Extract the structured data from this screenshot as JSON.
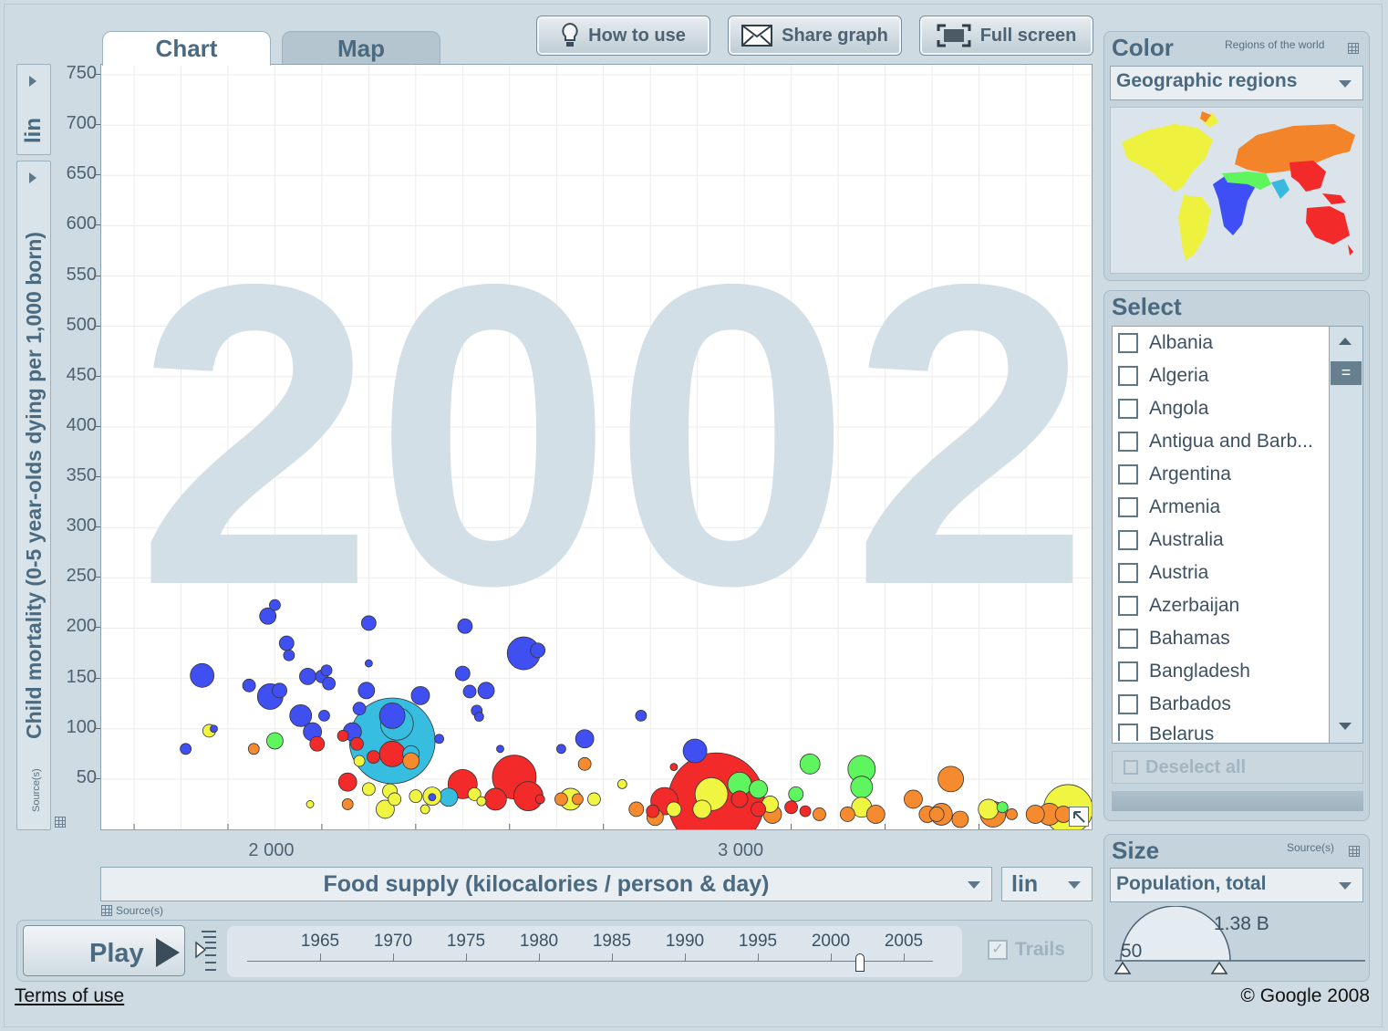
{
  "tabs": [
    {
      "label": "Chart",
      "active": true
    },
    {
      "label": "Map",
      "active": false
    }
  ],
  "toolbar": {
    "how_to_use": "How to use",
    "share_graph": "Share graph",
    "full_screen": "Full screen"
  },
  "y_axis": {
    "scale": "lin",
    "label": "Child mortality (0-5 year-olds dying per 1,000 born)",
    "source": "Source(s)"
  },
  "x_axis": {
    "scale": "lin",
    "label": "Food supply (kilocalories / person & day)",
    "source": "Source(s)"
  },
  "year_watermark": "2002",
  "color_panel": {
    "title": "Color",
    "subtitle": "Regions of the world",
    "selected": "Geographic regions"
  },
  "select_panel": {
    "title": "Select",
    "countries": [
      "Albania",
      "Algeria",
      "Angola",
      "Antigua and Barb...",
      "Argentina",
      "Armenia",
      "Australia",
      "Austria",
      "Azerbaijan",
      "Bahamas",
      "Bangladesh",
      "Barbados",
      "Belarus"
    ],
    "deselect_all": "Deselect all"
  },
  "size_panel": {
    "title": "Size",
    "source": "Source(s)",
    "selected": "Population, total",
    "max_label": "1.38 B",
    "min_label": "50"
  },
  "timeline": {
    "play": "Play",
    "years": [
      "1965",
      "1970",
      "1975",
      "1980",
      "1985",
      "1990",
      "1995",
      "2000",
      "2005"
    ],
    "current_year": 2002,
    "trails": "Trails"
  },
  "footer": {
    "terms": "Terms of use",
    "copyright": "© Google 2008"
  },
  "colors": {
    "sub_saharan_africa": "#3f4ff2",
    "south_asia": "#36bde0",
    "east_asia_pacific": "#f22a2a",
    "america": "#f0f542",
    "europe_central_asia": "#f58a2e",
    "middle_east_north_africa": "#5ef55e"
  },
  "chart_data": {
    "type": "scatter",
    "title": "",
    "xlabel": "Food supply (kilocalories / person & day)",
    "ylabel": "Child mortality (0-5 year-olds dying per 1,000 born)",
    "xlim": [
      1630,
      3740
    ],
    "ylim": [
      0,
      760
    ],
    "x_ticks": [
      2000,
      3000
    ],
    "x_tick_labels": [
      "2 000",
      "3 000"
    ],
    "y_ticks": [
      50,
      100,
      150,
      200,
      250,
      300,
      350,
      400,
      450,
      500,
      550,
      600,
      650,
      700,
      750
    ],
    "size_note": "Bubble area proportional to population",
    "points": [
      {
        "x": 1810,
        "y": 80,
        "r": 6,
        "c": "sub_saharan_africa"
      },
      {
        "x": 1845,
        "y": 153,
        "r": 13,
        "c": "sub_saharan_africa"
      },
      {
        "x": 1945,
        "y": 143,
        "r": 7,
        "c": "sub_saharan_africa"
      },
      {
        "x": 1985,
        "y": 212,
        "r": 9,
        "c": "sub_saharan_africa"
      },
      {
        "x": 2000,
        "y": 223,
        "r": 6,
        "c": "sub_saharan_africa"
      },
      {
        "x": 1990,
        "y": 132,
        "r": 14,
        "c": "sub_saharan_africa"
      },
      {
        "x": 2010,
        "y": 138,
        "r": 8,
        "c": "sub_saharan_africa"
      },
      {
        "x": 2025,
        "y": 185,
        "r": 8,
        "c": "sub_saharan_africa"
      },
      {
        "x": 2030,
        "y": 173,
        "r": 6,
        "c": "sub_saharan_africa"
      },
      {
        "x": 2070,
        "y": 152,
        "r": 9,
        "c": "sub_saharan_africa"
      },
      {
        "x": 2055,
        "y": 113,
        "r": 12,
        "c": "sub_saharan_africa"
      },
      {
        "x": 2080,
        "y": 97,
        "r": 10,
        "c": "sub_saharan_africa"
      },
      {
        "x": 2100,
        "y": 152,
        "r": 7,
        "c": "sub_saharan_africa"
      },
      {
        "x": 2110,
        "y": 158,
        "r": 6,
        "c": "sub_saharan_africa"
      },
      {
        "x": 2115,
        "y": 145,
        "r": 7,
        "c": "sub_saharan_africa"
      },
      {
        "x": 2105,
        "y": 113,
        "r": 6,
        "c": "sub_saharan_africa"
      },
      {
        "x": 1870,
        "y": 100,
        "r": 4,
        "c": "sub_saharan_africa"
      },
      {
        "x": 2180,
        "y": 120,
        "r": 7,
        "c": "sub_saharan_africa"
      },
      {
        "x": 2165,
        "y": 97,
        "r": 10,
        "c": "sub_saharan_africa"
      },
      {
        "x": 2195,
        "y": 138,
        "r": 9,
        "c": "sub_saharan_africa"
      },
      {
        "x": 2200,
        "y": 165,
        "r": 4,
        "c": "sub_saharan_africa"
      },
      {
        "x": 2200,
        "y": 205,
        "r": 8,
        "c": "sub_saharan_africa"
      },
      {
        "x": 2250,
        "y": 113,
        "r": 14,
        "c": "sub_saharan_africa"
      },
      {
        "x": 2310,
        "y": 133,
        "r": 10,
        "c": "sub_saharan_africa"
      },
      {
        "x": 2350,
        "y": 90,
        "r": 5,
        "c": "sub_saharan_africa"
      },
      {
        "x": 2405,
        "y": 202,
        "r": 8,
        "c": "sub_saharan_africa"
      },
      {
        "x": 2400,
        "y": 155,
        "r": 8,
        "c": "sub_saharan_africa"
      },
      {
        "x": 2415,
        "y": 137,
        "r": 7,
        "c": "sub_saharan_africa"
      },
      {
        "x": 2430,
        "y": 118,
        "r": 6,
        "c": "sub_saharan_africa"
      },
      {
        "x": 2435,
        "y": 112,
        "r": 5,
        "c": "sub_saharan_africa"
      },
      {
        "x": 2450,
        "y": 138,
        "r": 9,
        "c": "sub_saharan_africa"
      },
      {
        "x": 2530,
        "y": 175,
        "r": 18,
        "c": "sub_saharan_africa"
      },
      {
        "x": 2560,
        "y": 178,
        "r": 8,
        "c": "sub_saharan_africa"
      },
      {
        "x": 2480,
        "y": 80,
        "r": 4,
        "c": "sub_saharan_africa"
      },
      {
        "x": 2610,
        "y": 80,
        "r": 5,
        "c": "sub_saharan_africa"
      },
      {
        "x": 2660,
        "y": 90,
        "r": 10,
        "c": "sub_saharan_africa"
      },
      {
        "x": 2780,
        "y": 113,
        "r": 6,
        "c": "sub_saharan_africa"
      },
      {
        "x": 2895,
        "y": 78,
        "r": 13,
        "c": "sub_saharan_africa"
      },
      {
        "x": 2335,
        "y": 32,
        "r": 4,
        "c": "sub_saharan_africa"
      },
      {
        "x": 2250,
        "y": 88,
        "r": 47,
        "c": "south_asia"
      },
      {
        "x": 2260,
        "y": 105,
        "r": 18,
        "c": "south_asia"
      },
      {
        "x": 2370,
        "y": 32,
        "r": 10,
        "c": "south_asia"
      },
      {
        "x": 2290,
        "y": 75,
        "r": 9,
        "c": "south_asia"
      },
      {
        "x": 2175,
        "y": 85,
        "r": 7,
        "c": "east_asia_pacific"
      },
      {
        "x": 2210,
        "y": 72,
        "r": 7,
        "c": "east_asia_pacific"
      },
      {
        "x": 2155,
        "y": 47,
        "r": 10,
        "c": "east_asia_pacific"
      },
      {
        "x": 2250,
        "y": 75,
        "r": 14,
        "c": "east_asia_pacific"
      },
      {
        "x": 2400,
        "y": 45,
        "r": 16,
        "c": "east_asia_pacific"
      },
      {
        "x": 2510,
        "y": 52,
        "r": 24,
        "c": "east_asia_pacific"
      },
      {
        "x": 2540,
        "y": 33,
        "r": 16,
        "c": "east_asia_pacific"
      },
      {
        "x": 2470,
        "y": 30,
        "r": 12,
        "c": "east_asia_pacific"
      },
      {
        "x": 2565,
        "y": 30,
        "r": 5,
        "c": "east_asia_pacific"
      },
      {
        "x": 2090,
        "y": 85,
        "r": 8,
        "c": "east_asia_pacific"
      },
      {
        "x": 2145,
        "y": 93,
        "r": 6,
        "c": "east_asia_pacific"
      },
      {
        "x": 2830,
        "y": 28,
        "r": 15,
        "c": "east_asia_pacific"
      },
      {
        "x": 2940,
        "y": 28,
        "r": 53,
        "c": "east_asia_pacific"
      },
      {
        "x": 2990,
        "y": 30,
        "r": 9,
        "c": "east_asia_pacific"
      },
      {
        "x": 3030,
        "y": 20,
        "r": 8,
        "c": "east_asia_pacific"
      },
      {
        "x": 3100,
        "y": 22,
        "r": 7,
        "c": "east_asia_pacific"
      },
      {
        "x": 3130,
        "y": 18,
        "r": 6,
        "c": "east_asia_pacific"
      },
      {
        "x": 2850,
        "y": 62,
        "r": 4,
        "c": "east_asia_pacific"
      },
      {
        "x": 2805,
        "y": 18,
        "r": 7,
        "c": "east_asia_pacific"
      },
      {
        "x": 2930,
        "y": 35,
        "r": 18,
        "c": "america"
      },
      {
        "x": 2910,
        "y": 20,
        "r": 10,
        "c": "america"
      },
      {
        "x": 1860,
        "y": 98,
        "r": 7,
        "c": "america"
      },
      {
        "x": 2180,
        "y": 68,
        "r": 6,
        "c": "america"
      },
      {
        "x": 2200,
        "y": 40,
        "r": 7,
        "c": "america"
      },
      {
        "x": 2245,
        "y": 38,
        "r": 8,
        "c": "america"
      },
      {
        "x": 2255,
        "y": 30,
        "r": 7,
        "c": "america"
      },
      {
        "x": 2235,
        "y": 20,
        "r": 10,
        "c": "america"
      },
      {
        "x": 2300,
        "y": 33,
        "r": 7,
        "c": "america"
      },
      {
        "x": 2320,
        "y": 20,
        "r": 5,
        "c": "america"
      },
      {
        "x": 2335,
        "y": 33,
        "r": 10,
        "c": "america"
      },
      {
        "x": 2425,
        "y": 35,
        "r": 7,
        "c": "america"
      },
      {
        "x": 2440,
        "y": 28,
        "r": 5,
        "c": "america"
      },
      {
        "x": 2630,
        "y": 30,
        "r": 12,
        "c": "america"
      },
      {
        "x": 2680,
        "y": 30,
        "r": 7,
        "c": "america"
      },
      {
        "x": 2740,
        "y": 45,
        "r": 5,
        "c": "america"
      },
      {
        "x": 2850,
        "y": 20,
        "r": 8,
        "c": "america"
      },
      {
        "x": 3055,
        "y": 25,
        "r": 9,
        "c": "america"
      },
      {
        "x": 3250,
        "y": 22,
        "r": 11,
        "c": "america"
      },
      {
        "x": 3520,
        "y": 20,
        "r": 11,
        "c": "america"
      },
      {
        "x": 3690,
        "y": 20,
        "r": 27,
        "c": "america"
      },
      {
        "x": 2075,
        "y": 25,
        "r": 4,
        "c": "america"
      },
      {
        "x": 1955,
        "y": 80,
        "r": 6,
        "c": "europe_central_asia"
      },
      {
        "x": 2290,
        "y": 68,
        "r": 9,
        "c": "europe_central_asia"
      },
      {
        "x": 2155,
        "y": 25,
        "r": 6,
        "c": "europe_central_asia"
      },
      {
        "x": 2660,
        "y": 65,
        "r": 7,
        "c": "europe_central_asia"
      },
      {
        "x": 2610,
        "y": 30,
        "r": 7,
        "c": "europe_central_asia"
      },
      {
        "x": 2645,
        "y": 30,
        "r": 6,
        "c": "europe_central_asia"
      },
      {
        "x": 2770,
        "y": 20,
        "r": 8,
        "c": "europe_central_asia"
      },
      {
        "x": 2810,
        "y": 12,
        "r": 9,
        "c": "europe_central_asia"
      },
      {
        "x": 3060,
        "y": 15,
        "r": 10,
        "c": "europe_central_asia"
      },
      {
        "x": 3160,
        "y": 15,
        "r": 7,
        "c": "europe_central_asia"
      },
      {
        "x": 3220,
        "y": 15,
        "r": 8,
        "c": "europe_central_asia"
      },
      {
        "x": 3280,
        "y": 15,
        "r": 10,
        "c": "europe_central_asia"
      },
      {
        "x": 3360,
        "y": 30,
        "r": 10,
        "c": "europe_central_asia"
      },
      {
        "x": 3390,
        "y": 15,
        "r": 9,
        "c": "europe_central_asia"
      },
      {
        "x": 3420,
        "y": 15,
        "r": 12,
        "c": "europe_central_asia"
      },
      {
        "x": 3440,
        "y": 50,
        "r": 14,
        "c": "europe_central_asia"
      },
      {
        "x": 3460,
        "y": 10,
        "r": 9,
        "c": "europe_central_asia"
      },
      {
        "x": 3530,
        "y": 15,
        "r": 14,
        "c": "europe_central_asia"
      },
      {
        "x": 3570,
        "y": 15,
        "r": 6,
        "c": "europe_central_asia"
      },
      {
        "x": 3620,
        "y": 15,
        "r": 10,
        "c": "europe_central_asia"
      },
      {
        "x": 3650,
        "y": 15,
        "r": 12,
        "c": "europe_central_asia"
      },
      {
        "x": 3680,
        "y": 15,
        "r": 9,
        "c": "europe_central_asia"
      },
      {
        "x": 3410,
        "y": 15,
        "r": 8,
        "c": "europe_central_asia"
      },
      {
        "x": 2000,
        "y": 88,
        "r": 9,
        "c": "middle_east_north_africa"
      },
      {
        "x": 2990,
        "y": 45,
        "r": 13,
        "c": "middle_east_north_africa"
      },
      {
        "x": 3030,
        "y": 40,
        "r": 10,
        "c": "middle_east_north_africa"
      },
      {
        "x": 3110,
        "y": 35,
        "r": 8,
        "c": "middle_east_north_africa"
      },
      {
        "x": 3140,
        "y": 65,
        "r": 11,
        "c": "middle_east_north_africa"
      },
      {
        "x": 3250,
        "y": 60,
        "r": 15,
        "c": "middle_east_north_africa"
      },
      {
        "x": 3250,
        "y": 42,
        "r": 12,
        "c": "middle_east_north_africa"
      },
      {
        "x": 3550,
        "y": 22,
        "r": 6,
        "c": "middle_east_north_africa"
      }
    ]
  }
}
